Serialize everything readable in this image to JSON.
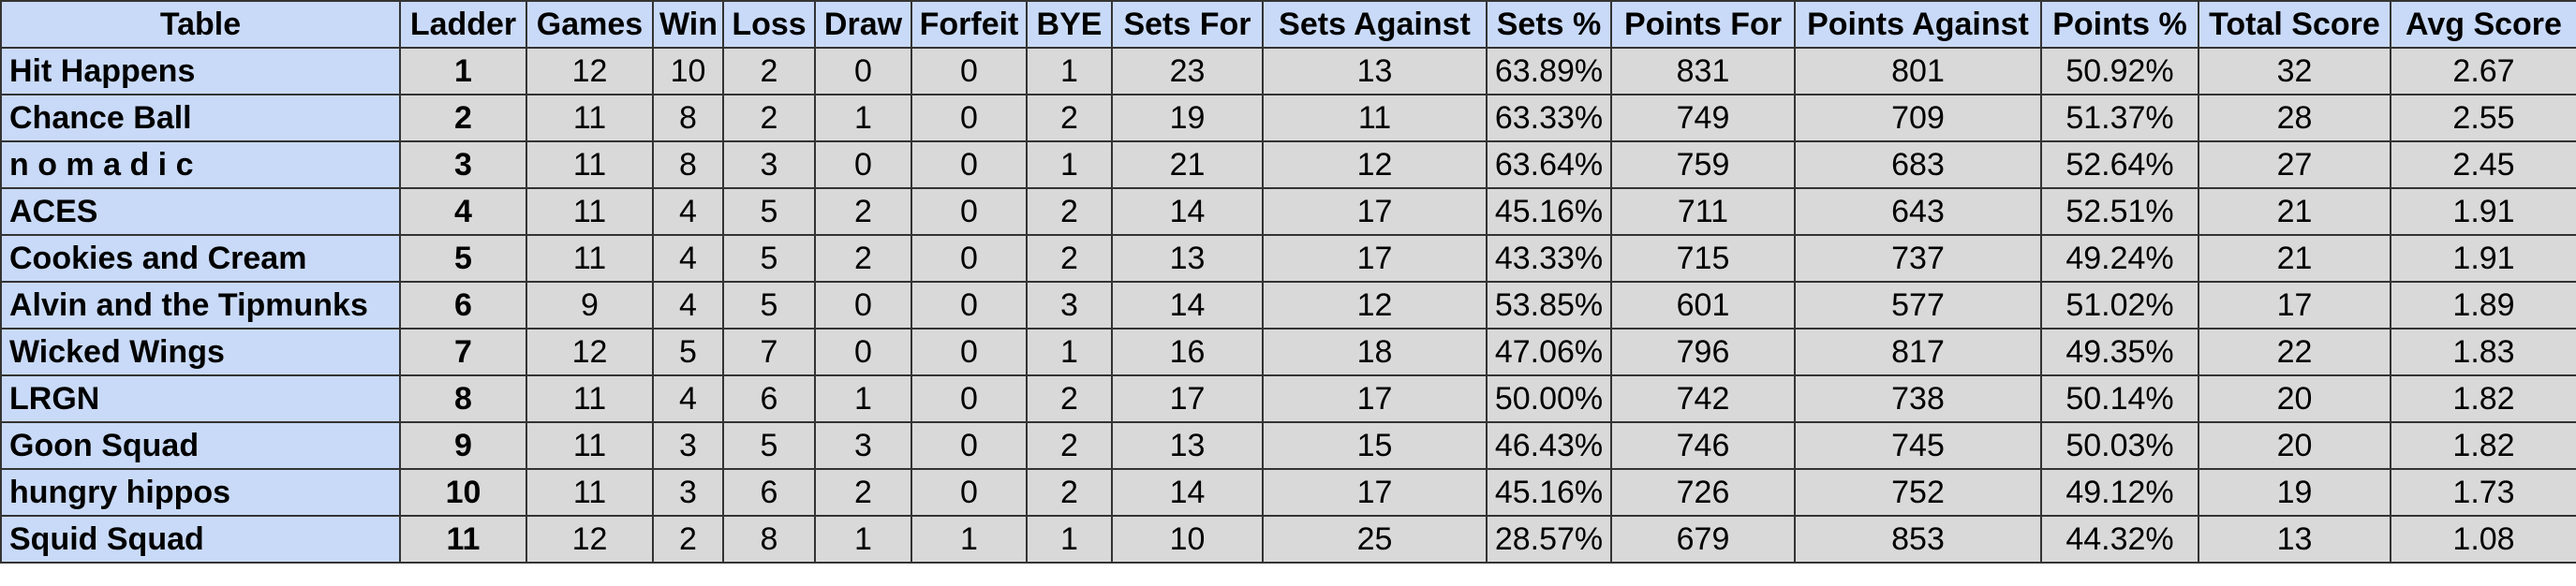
{
  "table": {
    "header": [
      "Table",
      "Ladder",
      "Games",
      "Win",
      "Loss",
      "Draw",
      "Forfeit",
      "BYE",
      "Sets For",
      "Sets Against",
      "Sets %",
      "Points For",
      "Points Against",
      "Points %",
      "Total Score",
      "Avg Score"
    ],
    "rows": [
      [
        "Hit Happens",
        1,
        12,
        10,
        2,
        0,
        0,
        1,
        23,
        13,
        "63.89%",
        831,
        801,
        "50.92%",
        32,
        2.67
      ],
      [
        "Chance Ball",
        2,
        11,
        8,
        2,
        1,
        0,
        2,
        19,
        11,
        "63.33%",
        749,
        709,
        "51.37%",
        28,
        2.55
      ],
      [
        "n o m a d i c",
        3,
        11,
        8,
        3,
        0,
        0,
        1,
        21,
        12,
        "63.64%",
        759,
        683,
        "52.64%",
        27,
        2.45
      ],
      [
        "ACES",
        4,
        11,
        4,
        5,
        2,
        0,
        2,
        14,
        17,
        "45.16%",
        711,
        643,
        "52.51%",
        21,
        1.91
      ],
      [
        "Cookies and Cream",
        5,
        11,
        4,
        5,
        2,
        0,
        2,
        13,
        17,
        "43.33%",
        715,
        737,
        "49.24%",
        21,
        1.91
      ],
      [
        "Alvin and the Tipmunks",
        6,
        9,
        4,
        5,
        0,
        0,
        3,
        14,
        12,
        "53.85%",
        601,
        577,
        "51.02%",
        17,
        1.89
      ],
      [
        "Wicked Wings",
        7,
        12,
        5,
        7,
        0,
        0,
        1,
        16,
        18,
        "47.06%",
        796,
        817,
        "49.35%",
        22,
        1.83
      ],
      [
        "LRGN",
        8,
        11,
        4,
        6,
        1,
        0,
        2,
        17,
        17,
        "50.00%",
        742,
        738,
        "50.14%",
        20,
        1.82
      ],
      [
        "Goon Squad",
        9,
        11,
        3,
        5,
        3,
        0,
        2,
        13,
        15,
        "46.43%",
        746,
        745,
        "50.03%",
        20,
        1.82
      ],
      [
        "hungry hippos",
        10,
        11,
        3,
        6,
        2,
        0,
        2,
        14,
        17,
        "45.16%",
        726,
        752,
        "49.12%",
        19,
        1.73
      ],
      [
        "Squid Squad",
        11,
        12,
        2,
        8,
        1,
        1,
        1,
        10,
        25,
        "28.57%",
        679,
        853,
        "44.32%",
        13,
        1.08
      ]
    ]
  }
}
